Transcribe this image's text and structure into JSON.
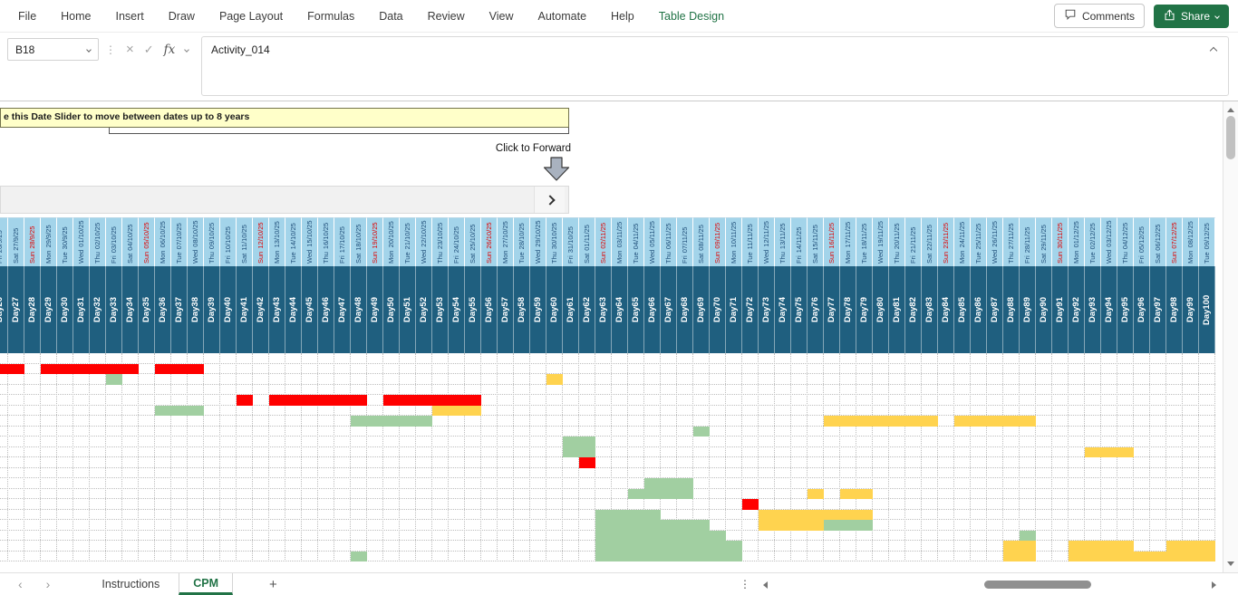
{
  "menu": {
    "items": [
      "File",
      "Home",
      "Insert",
      "Draw",
      "Page Layout",
      "Formulas",
      "Data",
      "Review",
      "View",
      "Automate",
      "Help"
    ],
    "contextual_tab": "Table Design",
    "comments": "Comments",
    "share": "Share"
  },
  "formula_bar": {
    "name_box": "B18",
    "fx": "fx",
    "content": "Activity_014"
  },
  "icons": {
    "cancel": "×",
    "enter": "✓",
    "more_vertical": "⋮",
    "prev_sheet": "‹",
    "next_sheet": "›"
  },
  "slider_panel": {
    "banner": "e this Date Slider to move between dates up to 8 years",
    "click_to_forward": "Click to Forward"
  },
  "accent_colors": {
    "excel_green": "#217346",
    "header_light_blue": "#A3D4EA",
    "header_dark_blue": "#1F5F7F",
    "sunday_red": "#E00000"
  },
  "gantt": {
    "colors": {
      "r": "#FF0000",
      "g": "#A1CFA1",
      "y": "#FFD34F"
    },
    "columns": [
      [
        "Fri",
        "26/9/25",
        "Day26"
      ],
      [
        "Sat",
        "27/9/25",
        "Day27"
      ],
      [
        "Sun",
        "28/9/25",
        "Day28"
      ],
      [
        "Mon",
        "29/9/25",
        "Day29"
      ],
      [
        "Tue",
        "30/9/25",
        "Day30"
      ],
      [
        "Wed",
        "01/10/25",
        "Day31"
      ],
      [
        "Thu",
        "02/10/25",
        "Day32"
      ],
      [
        "Fri",
        "03/10/25",
        "Day33"
      ],
      [
        "Sat",
        "04/10/25",
        "Day34"
      ],
      [
        "Sun",
        "05/10/25",
        "Day35"
      ],
      [
        "Mon",
        "06/10/25",
        "Day36"
      ],
      [
        "Tue",
        "07/10/25",
        "Day37"
      ],
      [
        "Wed",
        "08/10/25",
        "Day38"
      ],
      [
        "Thu",
        "09/10/25",
        "Day39"
      ],
      [
        "Fri",
        "10/10/25",
        "Day40"
      ],
      [
        "Sat",
        "11/10/25",
        "Day41"
      ],
      [
        "Sun",
        "12/10/25",
        "Day42"
      ],
      [
        "Mon",
        "13/10/25",
        "Day43"
      ],
      [
        "Tue",
        "14/10/25",
        "Day44"
      ],
      [
        "Wed",
        "15/10/25",
        "Day45"
      ],
      [
        "Thu",
        "16/10/25",
        "Day46"
      ],
      [
        "Fri",
        "17/10/25",
        "Day47"
      ],
      [
        "Sat",
        "18/10/25",
        "Day48"
      ],
      [
        "Sun",
        "19/10/25",
        "Day49"
      ],
      [
        "Mon",
        "20/10/25",
        "Day50"
      ],
      [
        "Tue",
        "21/10/25",
        "Day51"
      ],
      [
        "Wed",
        "22/10/25",
        "Day52"
      ],
      [
        "Thu",
        "23/10/25",
        "Day53"
      ],
      [
        "Fri",
        "24/10/25",
        "Day54"
      ],
      [
        "Sat",
        "25/10/25",
        "Day55"
      ],
      [
        "Sun",
        "26/10/25",
        "Day56"
      ],
      [
        "Mon",
        "27/10/25",
        "Day57"
      ],
      [
        "Tue",
        "28/10/25",
        "Day58"
      ],
      [
        "Wed",
        "29/10/25",
        "Day59"
      ],
      [
        "Thu",
        "30/10/25",
        "Day60"
      ],
      [
        "Fri",
        "31/10/25",
        "Day61"
      ],
      [
        "Sat",
        "01/11/25",
        "Day62"
      ],
      [
        "Sun",
        "02/11/25",
        "Day63"
      ],
      [
        "Mon",
        "03/11/25",
        "Day64"
      ],
      [
        "Tue",
        "04/11/25",
        "Day65"
      ],
      [
        "Wed",
        "05/11/25",
        "Day66"
      ],
      [
        "Thu",
        "06/11/25",
        "Day67"
      ],
      [
        "Fri",
        "07/11/25",
        "Day68"
      ],
      [
        "Sat",
        "08/11/25",
        "Day69"
      ],
      [
        "Sun",
        "09/11/25",
        "Day70"
      ],
      [
        "Mon",
        "10/11/25",
        "Day71"
      ],
      [
        "Tue",
        "11/11/25",
        "Day72"
      ],
      [
        "Wed",
        "12/11/25",
        "Day73"
      ],
      [
        "Thu",
        "13/11/25",
        "Day74"
      ],
      [
        "Fri",
        "14/11/25",
        "Day75"
      ],
      [
        "Sat",
        "15/11/25",
        "Day76"
      ],
      [
        "Sun",
        "16/11/25",
        "Day77"
      ],
      [
        "Mon",
        "17/11/25",
        "Day78"
      ],
      [
        "Tue",
        "18/11/25",
        "Day79"
      ],
      [
        "Wed",
        "19/11/25",
        "Day80"
      ],
      [
        "Thu",
        "20/11/25",
        "Day81"
      ],
      [
        "Fri",
        "21/11/25",
        "Day82"
      ],
      [
        "Sat",
        "22/11/25",
        "Day83"
      ],
      [
        "Sun",
        "23/11/25",
        "Day84"
      ],
      [
        "Mon",
        "24/11/25",
        "Day85"
      ],
      [
        "Tue",
        "25/11/25",
        "Day86"
      ],
      [
        "Wed",
        "26/11/25",
        "Day87"
      ],
      [
        "Thu",
        "27/11/25",
        "Day88"
      ],
      [
        "Fri",
        "28/11/25",
        "Day89"
      ],
      [
        "Sat",
        "29/11/25",
        "Day90"
      ],
      [
        "Sun",
        "30/11/25",
        "Day91"
      ],
      [
        "Mon",
        "01/12/25",
        "Day92"
      ],
      [
        "Tue",
        "02/12/25",
        "Day93"
      ],
      [
        "Wed",
        "03/12/25",
        "Day94"
      ],
      [
        "Thu",
        "04/12/25",
        "Day95"
      ],
      [
        "Fri",
        "05/12/25",
        "Day96"
      ],
      [
        "Sat",
        "06/12/25",
        "Day97"
      ],
      [
        "Sun",
        "07/12/25",
        "Day98"
      ],
      [
        "Mon",
        "08/12/25",
        "Day99"
      ],
      [
        "Tue",
        "09/12/25",
        "Day100"
      ]
    ],
    "cells": [
      [
        1,
        0,
        1,
        "r"
      ],
      [
        1,
        3,
        8,
        "r"
      ],
      [
        1,
        10,
        12,
        "r"
      ],
      [
        2,
        7,
        7,
        "g"
      ],
      [
        2,
        34,
        34,
        "y"
      ],
      [
        4,
        15,
        15,
        "r"
      ],
      [
        4,
        17,
        22,
        "r"
      ],
      [
        4,
        24,
        29,
        "r"
      ],
      [
        5,
        10,
        12,
        "g"
      ],
      [
        5,
        27,
        29,
        "y"
      ],
      [
        6,
        22,
        26,
        "g"
      ],
      [
        6,
        51,
        57,
        "y"
      ],
      [
        6,
        59,
        63,
        "y"
      ],
      [
        7,
        43,
        43,
        "g"
      ],
      [
        8,
        35,
        36,
        "g"
      ],
      [
        9,
        35,
        36,
        "g"
      ],
      [
        9,
        67,
        69,
        "y"
      ],
      [
        10,
        36,
        36,
        "r"
      ],
      [
        12,
        40,
        42,
        "g"
      ],
      [
        13,
        39,
        42,
        "g"
      ],
      [
        13,
        50,
        50,
        "y"
      ],
      [
        13,
        52,
        53,
        "y"
      ],
      [
        14,
        46,
        46,
        "r"
      ],
      [
        15,
        37,
        40,
        "g"
      ],
      [
        15,
        47,
        53,
        "y"
      ],
      [
        16,
        37,
        43,
        "g"
      ],
      [
        16,
        47,
        50,
        "y"
      ],
      [
        16,
        51,
        53,
        "g"
      ],
      [
        17,
        37,
        44,
        "g"
      ],
      [
        17,
        63,
        63,
        "g"
      ],
      [
        18,
        37,
        45,
        "g"
      ],
      [
        18,
        62,
        63,
        "y"
      ],
      [
        18,
        66,
        69,
        "y"
      ],
      [
        18,
        72,
        74,
        "y"
      ],
      [
        19,
        22,
        22,
        "g"
      ],
      [
        19,
        37,
        45,
        "g"
      ],
      [
        19,
        62,
        63,
        "y"
      ],
      [
        19,
        66,
        74,
        "y"
      ]
    ]
  },
  "tab_bar": {
    "sheets": [
      {
        "label": "Instructions",
        "active": false
      },
      {
        "label": "CPM",
        "active": true
      }
    ],
    "add": "+"
  }
}
